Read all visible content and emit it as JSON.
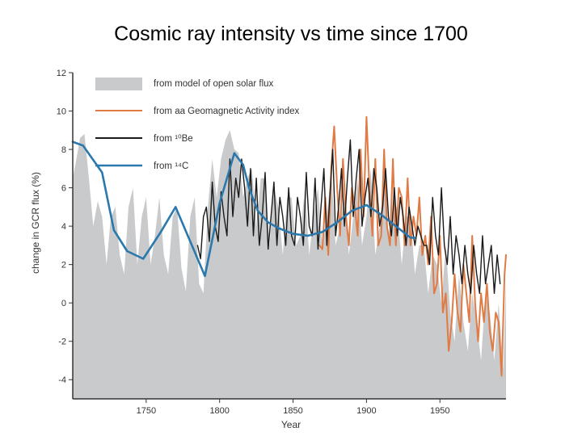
{
  "page": {
    "title": "Cosmic ray intensity vs time since 1700"
  },
  "chart_data": {
    "type": "line",
    "xlabel": "Year",
    "ylabel": "change in GCR flux (%)",
    "xlim": [
      1700,
      1995
    ],
    "ylim": [
      -5,
      12
    ],
    "x_ticks": [
      1750,
      1800,
      1850,
      1900,
      1950
    ],
    "y_ticks": [
      -4,
      -2,
      0,
      2,
      4,
      6,
      8,
      10,
      12
    ],
    "legend_position": "top-left",
    "colors": {
      "model": "#c9cacc",
      "aa": "#e07b45",
      "be10": "#1a1a1a",
      "c14": "#2b78ad"
    },
    "legend": [
      {
        "key": "model",
        "label": "from model of open solar flux",
        "style": "area"
      },
      {
        "key": "aa",
        "label": "from aa Geomagnetic Activity index",
        "style": "line"
      },
      {
        "key": "be10",
        "label": "from ¹⁰Be",
        "style": "line"
      },
      {
        "key": "c14",
        "label": "from ¹⁴C",
        "style": "line"
      }
    ],
    "series": [
      {
        "key": "model",
        "name": "from model of open solar flux",
        "x": [
          1700,
          1702,
          1705,
          1708,
          1711,
          1714,
          1717,
          1720,
          1723,
          1726,
          1729,
          1732,
          1735,
          1738,
          1741,
          1744,
          1747,
          1750,
          1753,
          1756,
          1759,
          1762,
          1765,
          1768,
          1771,
          1774,
          1777,
          1780,
          1783,
          1786,
          1789,
          1792,
          1795,
          1798,
          1801,
          1804,
          1807,
          1810,
          1813,
          1816,
          1819,
          1822,
          1825,
          1828,
          1831,
          1834,
          1837,
          1840,
          1843,
          1846,
          1849,
          1852,
          1855,
          1858,
          1861,
          1864,
          1867,
          1870,
          1873,
          1876,
          1879,
          1882,
          1885,
          1888,
          1891,
          1894,
          1897,
          1900,
          1903,
          1906,
          1909,
          1912,
          1915,
          1918,
          1921,
          1924,
          1927,
          1930,
          1933,
          1936,
          1939,
          1942,
          1945,
          1948,
          1951,
          1954,
          1957,
          1960,
          1963,
          1966,
          1969,
          1972,
          1975,
          1978,
          1981,
          1984,
          1987,
          1990,
          1993,
          1995
        ],
        "values": [
          6.5,
          7.3,
          8.6,
          8.8,
          6.5,
          4.0,
          5.3,
          4.5,
          2.0,
          4.5,
          5.0,
          2.5,
          1.5,
          5.0,
          6.0,
          2.0,
          4.5,
          5.5,
          2.0,
          3.5,
          5.5,
          2.5,
          1.5,
          4.5,
          5.0,
          1.8,
          0.6,
          4.5,
          5.5,
          1.0,
          0.5,
          5.0,
          7.5,
          5.5,
          7.5,
          8.5,
          9.0,
          8.0,
          7.8,
          5.5,
          6.5,
          7.0,
          4.0,
          6.5,
          6.5,
          3.0,
          6.0,
          5.0,
          2.5,
          5.5,
          5.5,
          3.0,
          3.5,
          6.0,
          2.5,
          4.5,
          6.0,
          3.0,
          4.5,
          7.0,
          3.0,
          4.0,
          5.5,
          2.5,
          4.5,
          6.5,
          3.0,
          4.5,
          7.0,
          2.5,
          4.0,
          6.5,
          3.5,
          5.0,
          5.0,
          2.0,
          4.5,
          4.5,
          1.5,
          3.0,
          3.0,
          0.5,
          2.5,
          2.0,
          0.0,
          3.0,
          -0.5,
          -2.0,
          1.5,
          -1.0,
          -2.5,
          0.5,
          -1.0,
          -3.0,
          0.5,
          -0.5,
          -3.0,
          0.0,
          -3.5,
          1.0
        ]
      },
      {
        "key": "aa",
        "name": "from aa Geomagnetic Activity index",
        "x": [
          1868,
          1870,
          1872,
          1874,
          1876,
          1878,
          1880,
          1882,
          1884,
          1886,
          1888,
          1890,
          1892,
          1894,
          1896,
          1898,
          1900,
          1902,
          1904,
          1906,
          1908,
          1910,
          1912,
          1914,
          1916,
          1918,
          1920,
          1922,
          1924,
          1926,
          1928,
          1930,
          1932,
          1934,
          1936,
          1938,
          1940,
          1942,
          1944,
          1946,
          1948,
          1950,
          1952,
          1954,
          1956,
          1958,
          1960,
          1962,
          1964,
          1966,
          1968,
          1970,
          1972,
          1974,
          1976,
          1978,
          1980,
          1982,
          1984,
          1986,
          1988,
          1990,
          1992,
          1994,
          1995
        ],
        "values": [
          3.0,
          2.8,
          5.5,
          2.5,
          7.0,
          9.2,
          6.0,
          3.5,
          7.5,
          4.5,
          3.0,
          6.0,
          5.0,
          3.5,
          8.0,
          4.5,
          9.7,
          6.0,
          3.5,
          7.5,
          3.0,
          3.5,
          8.0,
          4.0,
          3.0,
          7.5,
          3.0,
          6.0,
          5.5,
          3.0,
          6.5,
          3.0,
          4.5,
          3.5,
          5.5,
          2.5,
          3.5,
          2.0,
          4.5,
          0.5,
          1.0,
          3.5,
          -0.5,
          0.5,
          -2.5,
          -1.0,
          1.5,
          -0.5,
          -1.5,
          2.0,
          0.5,
          -1.0,
          3.5,
          0.0,
          -2.0,
          0.5,
          -1.0,
          1.0,
          -1.5,
          -2.5,
          -0.5,
          -1.0,
          -3.8,
          1.5,
          2.5
        ]
      },
      {
        "key": "be10",
        "name": "from ¹⁰Be",
        "x": [
          1785,
          1787,
          1789,
          1791,
          1793,
          1795,
          1797,
          1799,
          1801,
          1803,
          1805,
          1807,
          1809,
          1811,
          1813,
          1815,
          1817,
          1819,
          1821,
          1823,
          1825,
          1827,
          1829,
          1831,
          1833,
          1835,
          1837,
          1839,
          1841,
          1843,
          1845,
          1847,
          1849,
          1851,
          1853,
          1855,
          1857,
          1859,
          1861,
          1863,
          1865,
          1867,
          1869,
          1871,
          1873,
          1875,
          1877,
          1879,
          1881,
          1883,
          1885,
          1887,
          1889,
          1891,
          1893,
          1895,
          1897,
          1899,
          1901,
          1903,
          1905,
          1907,
          1909,
          1911,
          1913,
          1915,
          1917,
          1919,
          1921,
          1923,
          1925,
          1927,
          1929,
          1931,
          1933,
          1935,
          1937,
          1939,
          1941,
          1943,
          1945,
          1947,
          1949,
          1951,
          1953,
          1955,
          1957,
          1959,
          1961,
          1963,
          1965,
          1967,
          1969,
          1971,
          1973,
          1975,
          1977,
          1979,
          1981,
          1983,
          1985,
          1987,
          1989,
          1991
        ],
        "values": [
          3.0,
          2.3,
          4.5,
          5.0,
          3.2,
          6.3,
          4.0,
          3.2,
          5.8,
          4.5,
          3.5,
          7.5,
          4.5,
          6.5,
          5.5,
          7.5,
          6.0,
          4.0,
          7.0,
          3.5,
          6.5,
          3.0,
          4.5,
          6.8,
          2.8,
          4.5,
          6.3,
          3.0,
          5.5,
          4.5,
          3.0,
          6.0,
          3.5,
          3.0,
          5.5,
          4.5,
          3.0,
          6.8,
          4.0,
          3.5,
          6.5,
          2.8,
          5.0,
          7.0,
          3.0,
          5.5,
          8.0,
          3.5,
          5.0,
          7.0,
          4.0,
          6.5,
          8.5,
          4.5,
          6.5,
          8.0,
          4.0,
          5.5,
          6.5,
          4.5,
          7.0,
          6.0,
          4.0,
          5.0,
          7.0,
          4.5,
          3.5,
          6.0,
          3.5,
          5.5,
          4.5,
          3.0,
          5.0,
          4.0,
          3.0,
          4.0,
          3.5,
          3.0,
          3.0,
          2.0,
          5.5,
          3.5,
          2.5,
          6.0,
          3.0,
          2.0,
          4.5,
          1.5,
          3.5,
          2.5,
          1.0,
          3.0,
          1.5,
          0.5,
          3.0,
          1.5,
          0.5,
          3.5,
          1.0,
          2.0,
          3.0,
          0.5,
          2.5,
          1.0
        ]
      },
      {
        "key": "c14",
        "name": "from ¹⁴C",
        "x": [
          1700,
          1707,
          1720,
          1728,
          1737,
          1748,
          1760,
          1770,
          1780,
          1790,
          1800,
          1810,
          1816,
          1820,
          1826,
          1833,
          1840,
          1850,
          1860,
          1870,
          1880,
          1890,
          1900,
          1910,
          1920,
          1930,
          1933
        ],
        "values": [
          8.4,
          8.2,
          6.8,
          3.8,
          2.7,
          2.3,
          3.7,
          5.0,
          3.2,
          1.4,
          5.2,
          7.8,
          7.2,
          6.0,
          4.8,
          4.2,
          3.9,
          3.6,
          3.5,
          3.7,
          4.2,
          4.8,
          5.1,
          4.6,
          4.0,
          3.4,
          3.4
        ]
      }
    ]
  }
}
